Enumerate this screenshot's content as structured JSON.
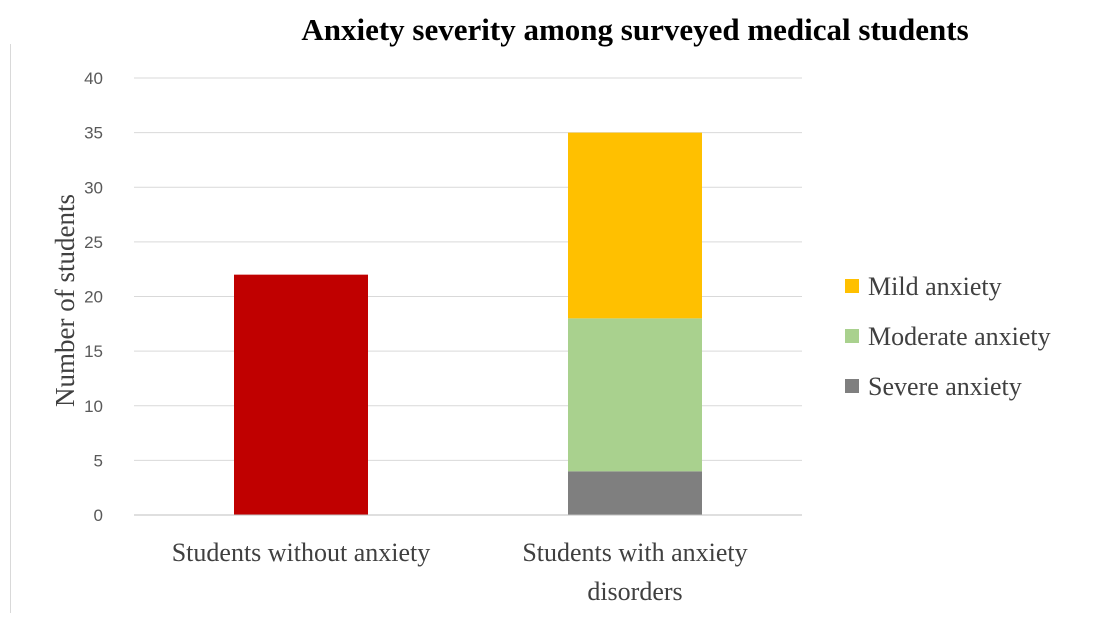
{
  "chart_data": {
    "type": "bar",
    "stacked": true,
    "title": "Anxiety severity among surveyed medical students",
    "xlabel": "",
    "ylabel": "Number of students",
    "ylim": [
      0,
      40
    ],
    "yticks": [
      0,
      5,
      10,
      15,
      20,
      25,
      30,
      35,
      40
    ],
    "grid": true,
    "legend_position": "right",
    "categories": [
      [
        "Students without anxiety"
      ],
      [
        "Students with anxiety",
        "disorders"
      ]
    ],
    "series": [
      {
        "name": "",
        "color": "#c00000",
        "values": [
          22,
          0
        ]
      },
      {
        "name": "Severe anxiety",
        "color": "#7f7f7f",
        "values": [
          0,
          4
        ]
      },
      {
        "name": "Moderate anxiety",
        "color": "#a9d18e",
        "values": [
          0,
          14
        ]
      },
      {
        "name": "Mild anxiety",
        "color": "#ffc000",
        "values": [
          0,
          17
        ]
      }
    ],
    "legend": [
      {
        "name": "Mild anxiety",
        "color": "#ffc000"
      },
      {
        "name": "Moderate anxiety",
        "color": "#a9d18e"
      },
      {
        "name": "Severe anxiety",
        "color": "#7f7f7f"
      }
    ]
  }
}
